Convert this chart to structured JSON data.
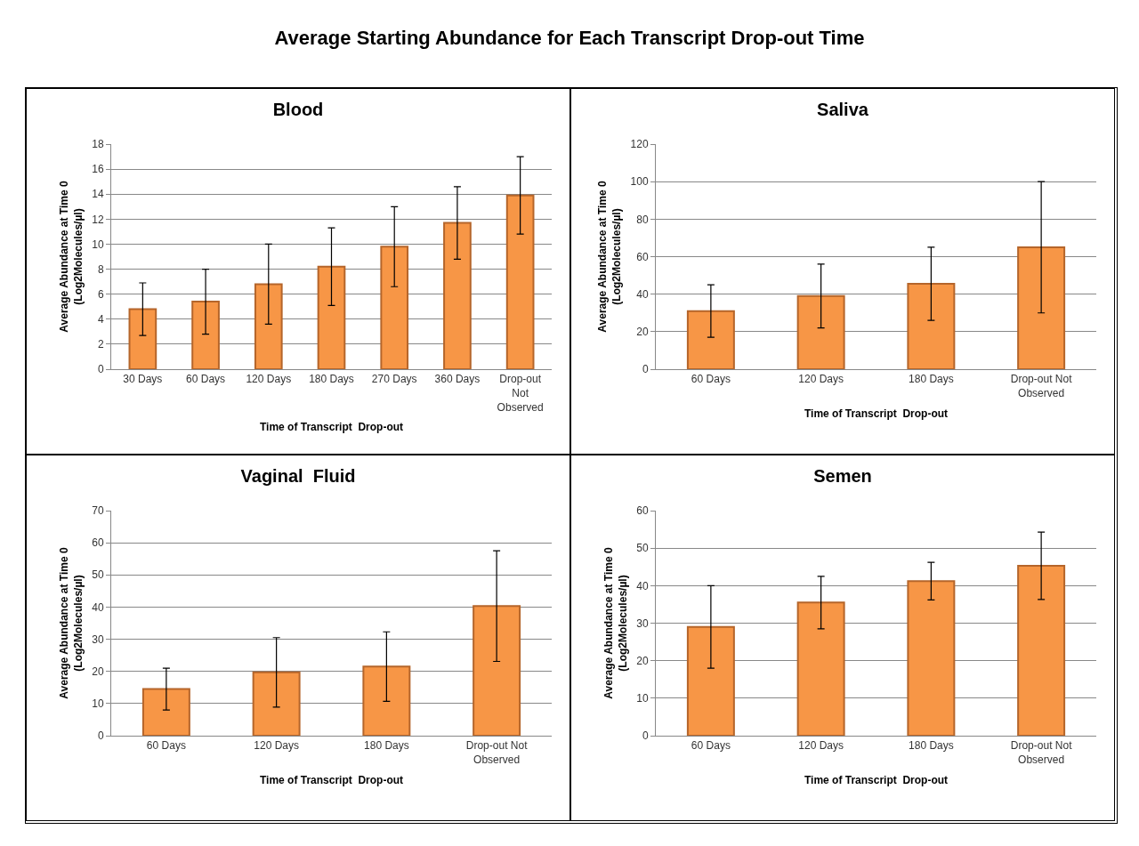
{
  "chart_data": [
    {
      "type": "bar",
      "title": "Blood",
      "annotations": [
        "Average Starting Abundance for Each Transcript Drop-out Time"
      ],
      "xlabel": "Time of Transcript  Drop-out",
      "ylabel": "Average Abundance at Time 0\n(Log2Molecules/µl)",
      "categories": [
        "30 Days",
        "60 Days",
        "120 Days",
        "180 Days",
        "270 Days",
        "360 Days",
        "Drop-out\nNot\nObserved"
      ],
      "values": [
        4.8,
        5.4,
        6.8,
        8.2,
        9.8,
        11.7,
        13.9
      ],
      "errors": [
        2.1,
        2.6,
        3.2,
        3.1,
        3.2,
        2.9,
        3.1
      ],
      "color": "#f79646",
      "ylim": [
        0,
        18
      ],
      "yticks": [
        0,
        2,
        4,
        6,
        8,
        10,
        12,
        14,
        16,
        18
      ],
      "grid": "y"
    },
    {
      "type": "bar",
      "title": "Saliva",
      "xlabel": "Time of Transcript  Drop-out",
      "ylabel": "Average Abundance at Time 0\n(Log2Molecules/µl)",
      "categories": [
        "60 Days",
        "120 Days",
        "180 Days",
        "Drop-out Not\nObserved"
      ],
      "values": [
        31,
        39,
        45.5,
        65
      ],
      "errors": [
        14,
        17,
        19.5,
        35
      ],
      "color": "#f79646",
      "ylim": [
        0,
        120
      ],
      "yticks": [
        0,
        20,
        40,
        60,
        80,
        100,
        120
      ],
      "grid": "y"
    },
    {
      "type": "bar",
      "title": "Vaginal  Fluid",
      "xlabel": "Time of Transcript  Drop-out",
      "ylabel": "Average Abundance at Time 0\n(Log2Molecules/µl)",
      "categories": [
        "60 Days",
        "120 Days",
        "180 Days",
        "Drop-out Not\nObserved"
      ],
      "values": [
        14.5,
        19.7,
        21.5,
        40.3
      ],
      "errors": [
        6.5,
        10.8,
        10.8,
        17.2
      ],
      "color": "#f79646",
      "ylim": [
        0,
        70
      ],
      "yticks": [
        0,
        10,
        20,
        30,
        40,
        50,
        60,
        70
      ],
      "grid": "y"
    },
    {
      "type": "bar",
      "title": "Semen",
      "xlabel": "Time of Transcript  Drop-out",
      "ylabel": "Average Abundance at Time 0\n(Log2Molecules/µl)",
      "categories": [
        "60 Days",
        "120 Days",
        "180 Days",
        "Drop-out Not\nObserved"
      ],
      "values": [
        29,
        35.5,
        41.2,
        45.3
      ],
      "errors": [
        11,
        7,
        5,
        9
      ],
      "color": "#f79646",
      "ylim": [
        0,
        60
      ],
      "yticks": [
        0,
        10,
        20,
        30,
        40,
        50,
        60
      ],
      "grid": "y"
    }
  ]
}
